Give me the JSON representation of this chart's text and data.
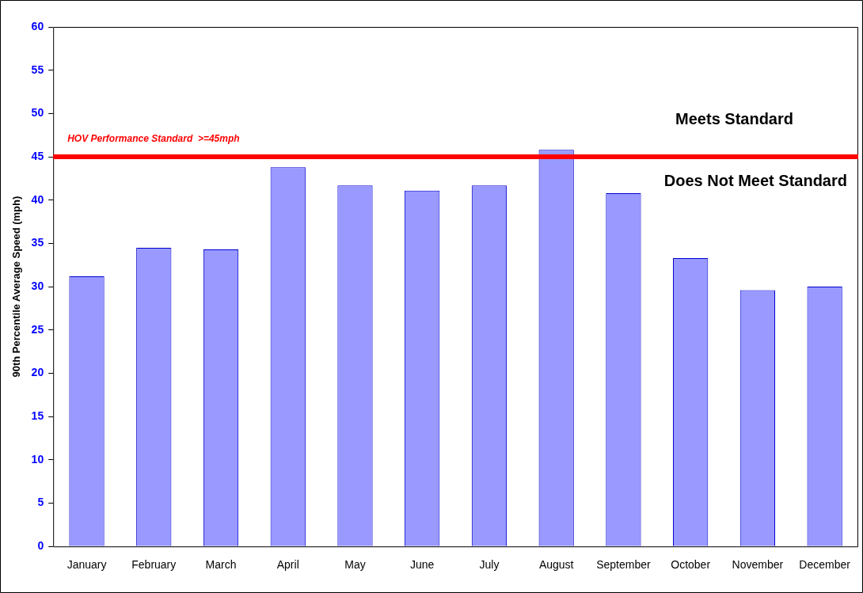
{
  "chart_data": {
    "type": "bar",
    "ylabel": "90th Percentile Average Speed (mph)",
    "categories": [
      "January",
      "February",
      "March",
      "April",
      "May",
      "June",
      "July",
      "August",
      "September",
      "October",
      "November",
      "December"
    ],
    "values": [
      31.2,
      34.5,
      34.3,
      43.8,
      41.7,
      41.1,
      41.7,
      45.8,
      40.8,
      33.3,
      29.6,
      30.0
    ],
    "color": "#9999ff",
    "ylim": [
      0,
      60
    ],
    "yticks": [
      0,
      5,
      10,
      15,
      20,
      25,
      30,
      35,
      40,
      45,
      50,
      55,
      60
    ],
    "grid": false,
    "legend": false,
    "ref_lines": [
      {
        "axis": "y",
        "value": 45,
        "label": "HOV Performance Standard  >=45mph",
        "color": "#ff0000"
      }
    ],
    "annotations": [
      "Meets Standard",
      "Does Not Meet Standard"
    ]
  }
}
